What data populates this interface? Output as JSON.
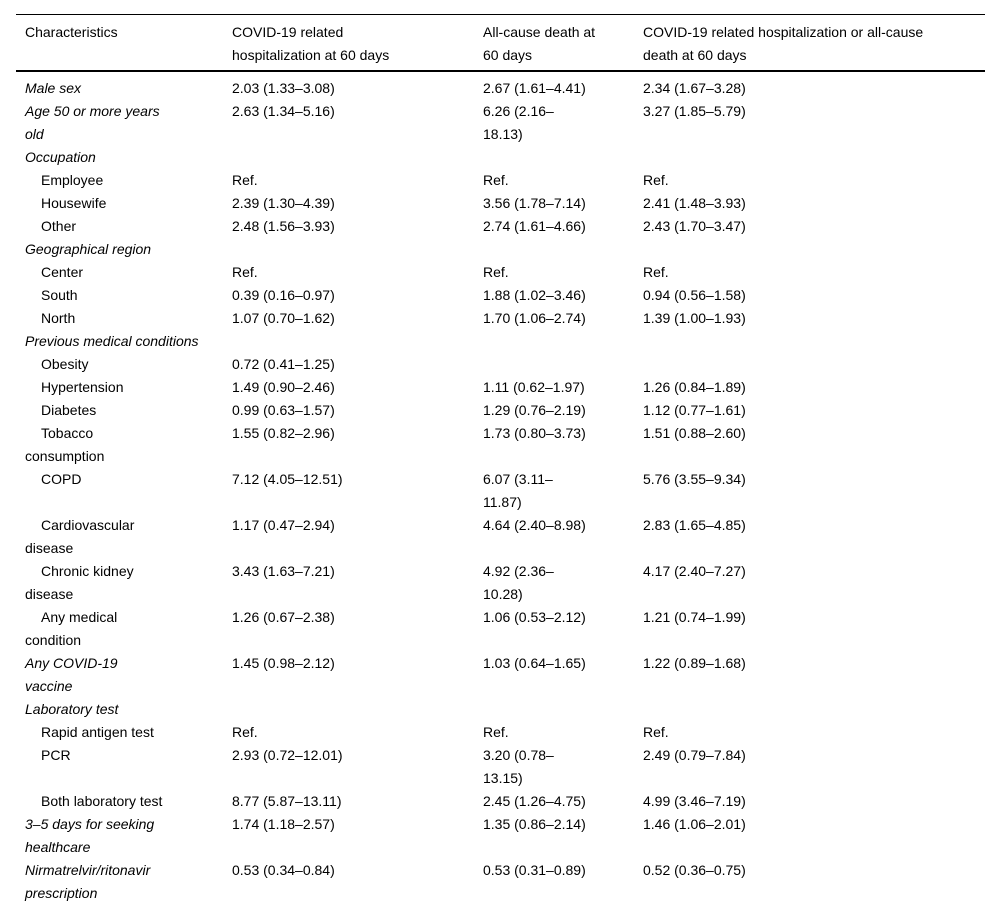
{
  "colors": {
    "background": "#ffffff",
    "text": "#000000",
    "rule": "#000000"
  },
  "table": {
    "columns": [
      {
        "label": "Characteristics"
      },
      {
        "label": "COVID-19 related\nhospitalization at 60 days"
      },
      {
        "label": "All-cause death at\n60 days"
      },
      {
        "label": "COVID-19 related hospitalization or all-cause\ndeath at 60 days"
      }
    ],
    "rows": [
      {
        "label": "Male sex",
        "style": "main",
        "values": [
          "2.03 (1.33–3.08)",
          "2.67 (1.61–4.41)",
          "2.34 (1.67–3.28)"
        ]
      },
      {
        "label": "Age 50 or more years\nold",
        "style": "main",
        "values": [
          "2.63 (1.34–5.16)",
          "6.26 (2.16–\n18.13)",
          "3.27 (1.85–5.79)"
        ]
      },
      {
        "label": "Occupation",
        "style": "section",
        "values": [
          "",
          "",
          ""
        ]
      },
      {
        "label": "Employee",
        "style": "sub",
        "values": [
          "Ref.",
          "Ref.",
          "Ref."
        ]
      },
      {
        "label": "Housewife",
        "style": "sub",
        "values": [
          "2.39 (1.30–4.39)",
          "3.56 (1.78–7.14)",
          "2.41 (1.48–3.93)"
        ]
      },
      {
        "label": "Other",
        "style": "sub",
        "values": [
          "2.48 (1.56–3.93)",
          "2.74 (1.61–4.66)",
          "2.43 (1.70–3.47)"
        ]
      },
      {
        "label": "Geographical region",
        "style": "section",
        "values": [
          "",
          "",
          ""
        ]
      },
      {
        "label": "Center",
        "style": "sub",
        "values": [
          "Ref.",
          "Ref.",
          "Ref."
        ]
      },
      {
        "label": "South",
        "style": "sub",
        "values": [
          "0.39 (0.16–0.97)",
          "1.88 (1.02–3.46)",
          "0.94 (0.56–1.58)"
        ]
      },
      {
        "label": "North",
        "style": "sub",
        "values": [
          "1.07 (0.70–1.62)",
          "1.70 (1.06–2.74)",
          "1.39 (1.00–1.93)"
        ]
      },
      {
        "label": "Previous medical conditions",
        "style": "section",
        "values": [
          "",
          "",
          ""
        ]
      },
      {
        "label": "Obesity",
        "style": "sub",
        "values": [
          "0.72 (0.41–1.25)",
          "",
          ""
        ]
      },
      {
        "label": "Hypertension",
        "style": "sub",
        "values": [
          "1.49 (0.90–2.46)",
          "1.11 (0.62–1.97)",
          "1.26 (0.84–1.89)"
        ]
      },
      {
        "label": "Diabetes",
        "style": "sub",
        "values": [
          "0.99 (0.63–1.57)",
          "1.29 (0.76–2.19)",
          "1.12 (0.77–1.61)"
        ]
      },
      {
        "label": "Tobacco\nconsumption",
        "style": "sub",
        "values": [
          "1.55 (0.82–2.96)",
          "1.73 (0.80–3.73)",
          "1.51 (0.88–2.60)"
        ]
      },
      {
        "label": "COPD",
        "style": "sub",
        "values": [
          "7.12 (4.05–12.51)",
          "6.07 (3.11–\n11.87)",
          "5.76 (3.55–9.34)"
        ]
      },
      {
        "label": "Cardiovascular\ndisease",
        "style": "sub",
        "values": [
          "1.17 (0.47–2.94)",
          "4.64 (2.40–8.98)",
          "2.83 (1.65–4.85)"
        ]
      },
      {
        "label": "Chronic kidney\ndisease",
        "style": "sub",
        "values": [
          "3.43 (1.63–7.21)",
          "4.92 (2.36–\n10.28)",
          "4.17 (2.40–7.27)"
        ]
      },
      {
        "label": "Any medical\ncondition",
        "style": "sub",
        "values": [
          "1.26 (0.67–2.38)",
          "1.06 (0.53–2.12)",
          "1.21 (0.74–1.99)"
        ]
      },
      {
        "label": "Any COVID-19\nvaccine",
        "style": "main",
        "values": [
          "1.45 (0.98–2.12)",
          "1.03 (0.64–1.65)",
          "1.22 (0.89–1.68)"
        ]
      },
      {
        "label": "Laboratory test",
        "style": "section",
        "values": [
          "",
          "",
          ""
        ]
      },
      {
        "label": "Rapid antigen test",
        "style": "sub",
        "values": [
          "Ref.",
          "Ref.",
          "Ref."
        ]
      },
      {
        "label": "PCR",
        "style": "sub",
        "values": [
          "2.93 (0.72–12.01)",
          "3.20 (0.78–\n13.15)",
          "2.49 (0.79–7.84)"
        ]
      },
      {
        "label": "Both laboratory test",
        "style": "sub",
        "values": [
          "8.77 (5.87–13.11)",
          "2.45 (1.26–4.75)",
          "4.99 (3.46–7.19)"
        ]
      },
      {
        "label": "3–5 days for seeking\nhealthcare",
        "style": "main",
        "values": [
          "1.74 (1.18–2.57)",
          "1.35 (0.86–2.14)",
          "1.46 (1.06–2.01)"
        ]
      },
      {
        "label": "Nirmatrelvir/ritonavir\nprescription",
        "style": "main",
        "values": [
          "0.53 (0.34–0.84)",
          "0.53 (0.31–0.89)",
          "0.52 (0.36–0.75)"
        ]
      }
    ]
  }
}
